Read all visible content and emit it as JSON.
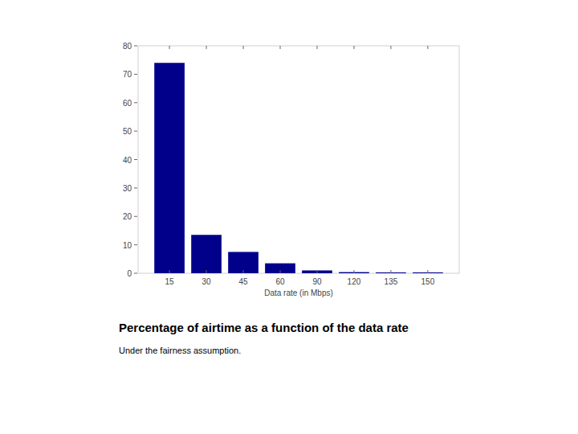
{
  "chart_data": {
    "type": "bar",
    "title": "Percentage of airtime as a function of the data rate",
    "subtitle": "Under the fairness assumption.",
    "x_label": "Data rate (in Mbps)",
    "categories": [
      "15",
      "30",
      "45",
      "60",
      "90",
      "120",
      "135",
      "150"
    ],
    "values": [
      74,
      13.5,
      7.5,
      3.5,
      1,
      0.4,
      0.3,
      0.3
    ],
    "color": "#00008b",
    "ylim": [
      0,
      80
    ],
    "yticks": [
      0,
      10,
      20,
      30,
      40,
      50,
      60,
      70,
      80
    ],
    "grid": false
  }
}
